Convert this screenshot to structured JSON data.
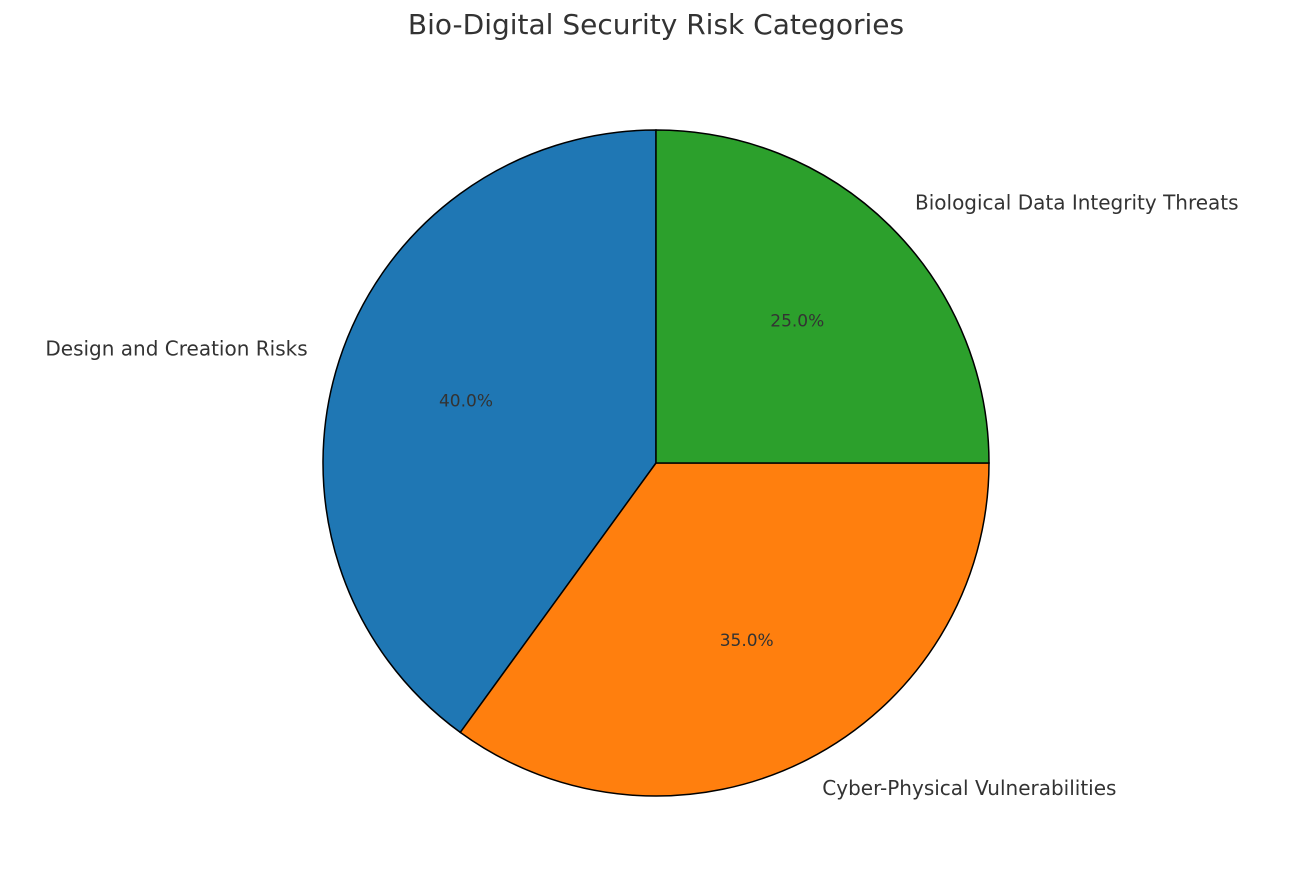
{
  "chart_data": {
    "type": "pie",
    "title": "Bio-Digital Security Risk Categories",
    "categories": [
      "Design and Creation Risks",
      "Cyber-Physical Vulnerabilities",
      "Biological Data Integrity Threats"
    ],
    "values": [
      40,
      35,
      25
    ],
    "value_labels": [
      "40.0%",
      "35.0%",
      "25.0%"
    ],
    "colors": [
      "#1f77b4",
      "#ff7f0e",
      "#2ca02c"
    ]
  }
}
